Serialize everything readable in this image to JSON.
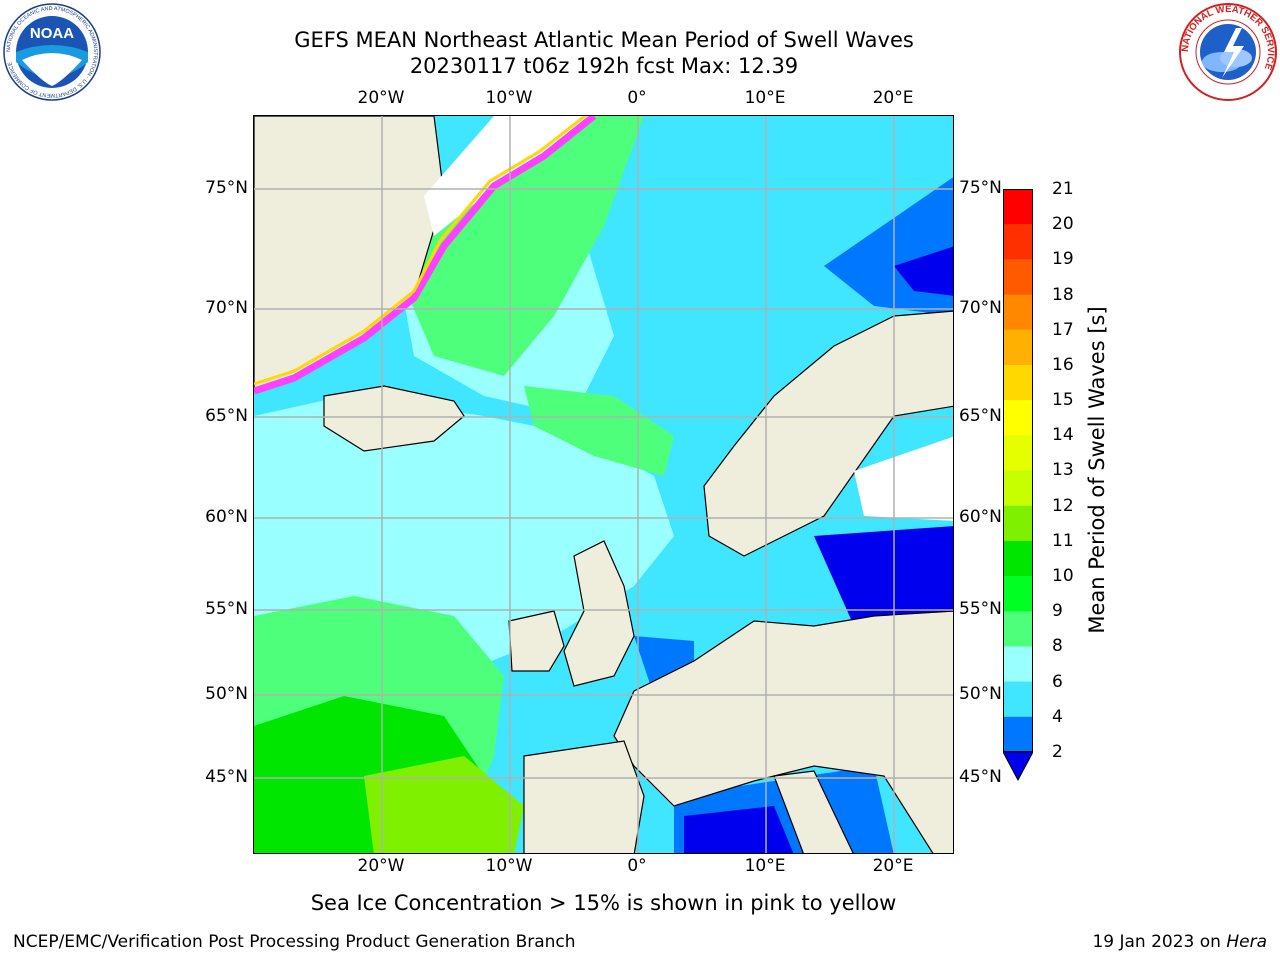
{
  "header": {
    "title_line1": "GEFS MEAN Northeast Atlantic Mean Period of Swell Waves",
    "title_line2": "20230117 t06z 192h fcst   Max: 12.39"
  },
  "axes": {
    "lon_ticks": [
      "20°W",
      "10°W",
      "0°",
      "10°E",
      "20°E"
    ],
    "lat_ticks": [
      "75°N",
      "70°N",
      "65°N",
      "60°N",
      "55°N",
      "50°N",
      "45°N"
    ]
  },
  "colorbar": {
    "title": "Mean Period of Swell Waves [s]",
    "labels": [
      "21",
      "20",
      "19",
      "18",
      "17",
      "16",
      "15",
      "14",
      "13",
      "12",
      "11",
      "10",
      "9",
      "8",
      "6",
      "4",
      "2"
    ],
    "colors": [
      "#ff0000",
      "#ff3000",
      "#ff5a00",
      "#ff8800",
      "#ffb000",
      "#ffd800",
      "#ffff00",
      "#e6ff00",
      "#c8ff00",
      "#7ff000",
      "#00e600",
      "#00ff22",
      "#4dff7a",
      "#99ffff",
      "#40e6ff",
      "#00eeff",
      "#0077ff"
    ],
    "extend_color": "#0000ee"
  },
  "logos": {
    "noaa_text": "NOAA",
    "noaa_ring_text": "NATIONAL OCEANIC AND ATMOSPHERIC ADMINISTRATION · U.S. DEPARTMENT OF COMMERCE",
    "nws_ring_text": "NATIONAL WEATHER SERVICE"
  },
  "note": "Sea Ice Concentration > 15% is shown in pink to yellow",
  "footer": {
    "left": "NCEP/EMC/Verification Post Processing Product Generation Branch",
    "right_prefix": "19 Jan 2023 on ",
    "right_host": "Hera"
  }
}
